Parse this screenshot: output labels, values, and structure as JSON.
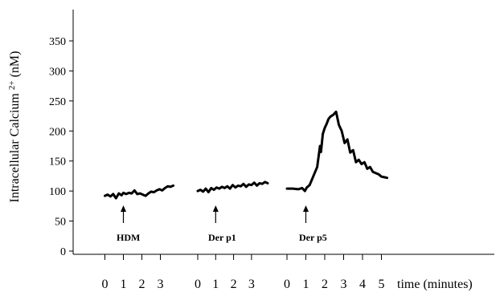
{
  "chart_data": {
    "type": "line",
    "title": "",
    "ylabel": "Intracellular Calcium",
    "ylabel_sup": "2+",
    "ylabel_unit": "(nM)",
    "xlabel": "time (minutes)",
    "ylim": [
      0,
      400
    ],
    "yticks": [
      0,
      50,
      100,
      150,
      200,
      250,
      300,
      350
    ],
    "grid": false,
    "legend": "none",
    "line_color": "#000000",
    "panels": [
      {
        "name": "HDM",
        "stimulus_time": 1,
        "xticks": [
          0,
          1,
          2,
          3
        ],
        "x": [
          0,
          0.15,
          0.3,
          0.45,
          0.6,
          0.75,
          0.9,
          1.0,
          1.15,
          1.3,
          1.45,
          1.6,
          1.75,
          1.9,
          2.05,
          2.2,
          2.35,
          2.5,
          2.65,
          2.8,
          2.95,
          3.1,
          3.25,
          3.4,
          3.55,
          3.7
        ],
        "values": [
          92,
          94,
          91,
          95,
          88,
          96,
          93,
          97,
          95,
          97,
          96,
          101,
          95,
          96,
          94,
          92,
          96,
          99,
          98,
          101,
          103,
          101,
          105,
          108,
          107,
          109
        ]
      },
      {
        "name": "Der  p1",
        "stimulus_time": 1,
        "xticks": [
          0,
          1,
          2,
          3
        ],
        "x": [
          0,
          0.15,
          0.3,
          0.45,
          0.6,
          0.75,
          0.9,
          1.05,
          1.2,
          1.35,
          1.5,
          1.65,
          1.8,
          1.95,
          2.1,
          2.25,
          2.4,
          2.55,
          2.7,
          2.85,
          3.0,
          3.15,
          3.3,
          3.45,
          3.6,
          3.75,
          3.9
        ],
        "values": [
          100,
          102,
          99,
          104,
          98,
          105,
          102,
          106,
          104,
          107,
          105,
          108,
          104,
          110,
          106,
          109,
          108,
          112,
          107,
          111,
          110,
          114,
          109,
          113,
          112,
          115,
          113
        ]
      },
      {
        "name": "Der  p5",
        "stimulus_time": 1,
        "xticks": [
          0,
          1,
          2,
          3,
          4,
          5
        ],
        "x": [
          0,
          0.3,
          0.6,
          0.8,
          0.95,
          1.05,
          1.2,
          1.4,
          1.6,
          1.75,
          1.8,
          1.9,
          2.0,
          2.1,
          2.2,
          2.3,
          2.45,
          2.6,
          2.75,
          2.9,
          3.05,
          3.2,
          3.35,
          3.5,
          3.65,
          3.8,
          3.95,
          4.1,
          4.25,
          4.4,
          4.55,
          4.7,
          4.85,
          5.0,
          5.15,
          5.3
        ],
        "values": [
          104,
          104,
          103,
          105,
          100,
          106,
          110,
          125,
          140,
          175,
          165,
          195,
          205,
          212,
          220,
          224,
          227,
          232,
          210,
          200,
          180,
          186,
          164,
          168,
          148,
          152,
          145,
          148,
          137,
          140,
          132,
          130,
          128,
          124,
          123,
          122
        ]
      }
    ]
  }
}
